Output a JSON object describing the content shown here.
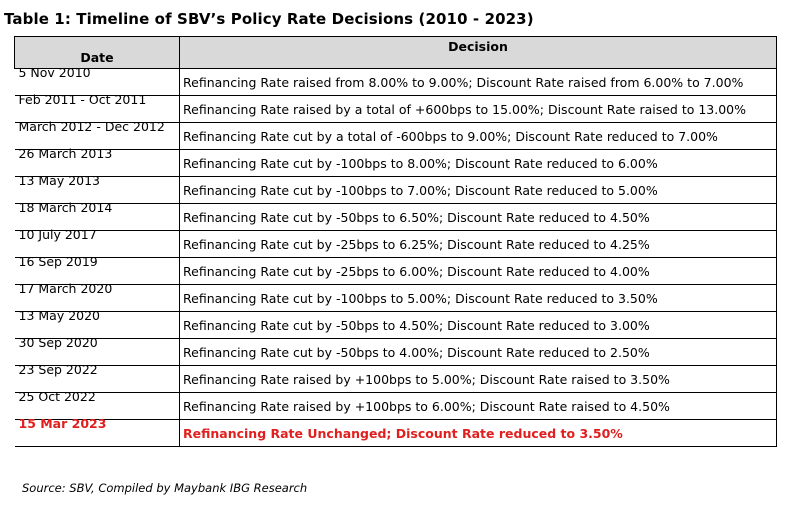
{
  "title": "Table 1: Timeline of SBV’s Policy Rate Decisions (2010 - 2023)",
  "headers": {
    "date": "Date",
    "decision": "Decision"
  },
  "rows": [
    {
      "date": "5 Nov 2010",
      "decision": "Refinancing Rate raised from 8.00% to 9.00%; Discount Rate raised from 6.00% to 7.00%"
    },
    {
      "date": "Feb 2011 - Oct 2011",
      "decision": "Refinancing Rate raised by a total of +600bps to 15.00%; Discount Rate raised to 13.00%"
    },
    {
      "date": "March 2012 - Dec 2012",
      "decision": "Refinancing Rate cut by a total of -600bps to 9.00%; Discount Rate reduced to 7.00%"
    },
    {
      "date": "26 March 2013",
      "decision": "Refinancing Rate cut by -100bps to 8.00%; Discount Rate reduced to 6.00%"
    },
    {
      "date": "13 May 2013",
      "decision": "Refinancing Rate cut by -100bps to 7.00%; Discount Rate reduced to 5.00%"
    },
    {
      "date": "18 March 2014",
      "decision": "Refinancing Rate cut by -50bps to 6.50%; Discount Rate reduced to 4.50%"
    },
    {
      "date": "10 July 2017",
      "decision": "Refinancing Rate cut by -25bps to 6.25%; Discount Rate reduced to 4.25%"
    },
    {
      "date": "16 Sep 2019",
      "decision": "Refinancing Rate cut by -25bps to 6.00%; Discount Rate reduced to 4.00%"
    },
    {
      "date": "17 March 2020",
      "decision": "Refinancing Rate cut by -100bps to 5.00%; Discount Rate reduced to 3.50%"
    },
    {
      "date": "13 May 2020",
      "decision": "Refinancing Rate cut by -50bps to 4.50%; Discount Rate reduced to 3.00%"
    },
    {
      "date": "30 Sep 2020",
      "decision": "Refinancing Rate cut by -50bps to 4.00%; Discount Rate reduced to 2.50%"
    },
    {
      "date": "23 Sep 2022",
      "decision": "Refinancing Rate raised by +100bps to 5.00%; Discount Rate raised to 3.50%"
    },
    {
      "date": "25 Oct 2022",
      "decision": "Refinancing Rate raised by +100bps to 6.00%; Discount Rate raised to 4.50%"
    },
    {
      "date": "15 Mar 2023",
      "decision": "Refinancing Rate Unchanged; Discount Rate reduced to 3.50%"
    }
  ],
  "highlight_color": "#e0201f",
  "source": "Source: SBV, Compiled by Maybank IBG Research"
}
